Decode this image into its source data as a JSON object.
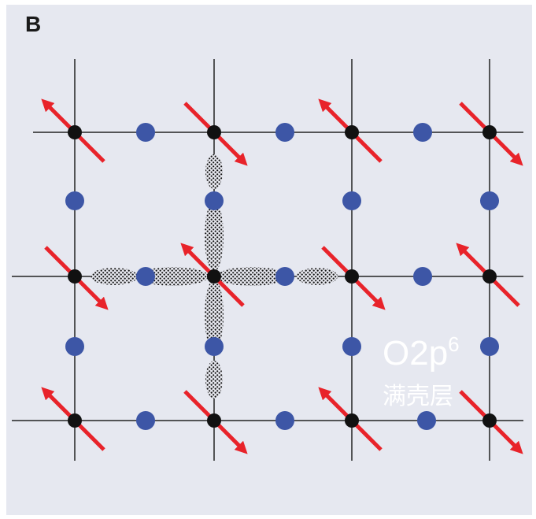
{
  "panel_label": "B",
  "annotation": {
    "orbital": "O2p",
    "superscript": "6",
    "caption": "满壳层"
  }
}
